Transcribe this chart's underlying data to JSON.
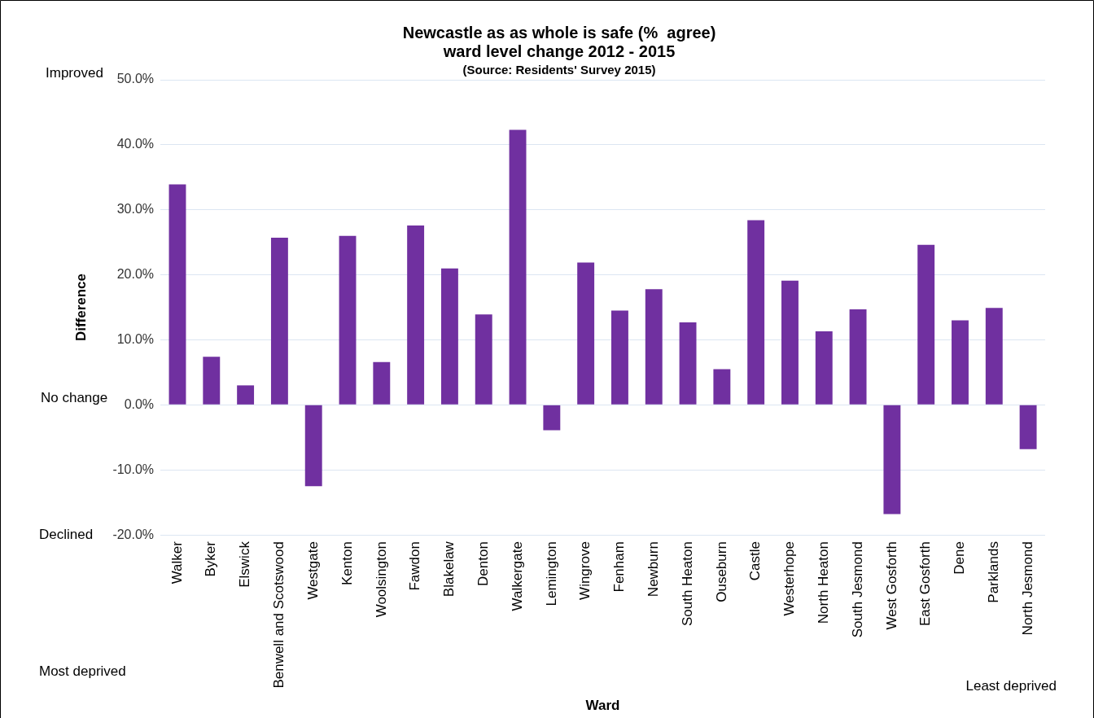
{
  "chart_data": {
    "type": "bar",
    "title": "Newcastle as as whole is safe (%  agree)\nward level change 2012 - 2015",
    "subtitle": "(Source: Residents' Survey 2015)",
    "xlabel": "Ward",
    "ylabel": "Difference",
    "categories": [
      "Walker",
      "Byker",
      "Elswick",
      "Benwell and Scotswood",
      "Westgate",
      "Kenton",
      "Woolsington",
      "Fawdon",
      "Blakelaw",
      "Denton",
      "Walkergate",
      "Lemington",
      "Wingrove",
      "Fenham",
      "Newburn",
      "South Heaton",
      "Ouseburn",
      "Castle",
      "Westerhope",
      "North Heaton",
      "South Jesmond",
      "West Gosforth",
      "East Gosforth",
      "Dene",
      "Parklands",
      "North Jesmond"
    ],
    "values": [
      33.9,
      7.4,
      3.0,
      25.7,
      -12.5,
      26.0,
      6.6,
      27.6,
      21.0,
      13.9,
      42.3,
      -3.9,
      21.9,
      14.5,
      17.8,
      12.7,
      5.5,
      28.4,
      19.1,
      11.3,
      14.7,
      -16.8,
      24.6,
      13.0,
      14.9,
      -6.8
    ],
    "color": "#7030a0",
    "ylim": [
      -20,
      50
    ],
    "yticks": [
      {
        "value": -20,
        "label": "-20.0%"
      },
      {
        "value": -10,
        "label": "-10.0%"
      },
      {
        "value": 0,
        "label": "0.0%"
      },
      {
        "value": 10,
        "label": "10.0%"
      },
      {
        "value": 20,
        "label": "20.0%"
      },
      {
        "value": 30,
        "label": "30.0%"
      },
      {
        "value": 40,
        "label": "40.0%"
      },
      {
        "value": 50,
        "label": "50.0%"
      }
    ],
    "grid": "y",
    "legend": false,
    "annotations": [
      "Improved",
      "No change",
      "Declined",
      "Most deprived",
      "Least deprived"
    ]
  }
}
